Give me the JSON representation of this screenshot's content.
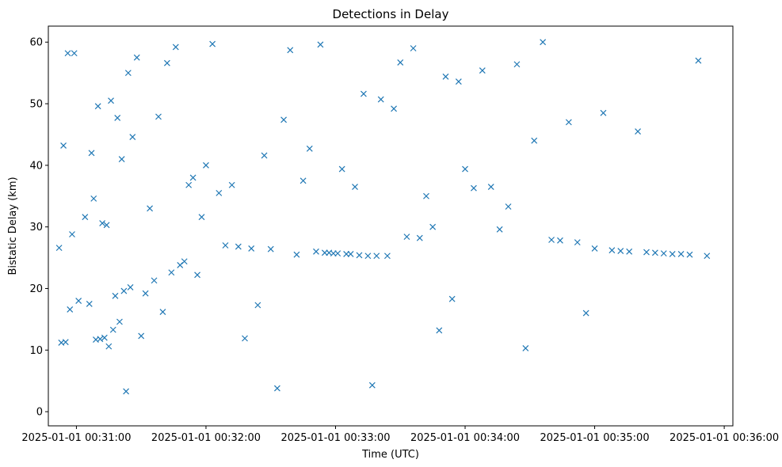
{
  "chart_data": {
    "type": "scatter",
    "title": "Detections in Delay",
    "xlabel": "Time (UTC)",
    "ylabel": "Bistatic Delay (km)",
    "marker": "x",
    "color": "#1f77b4",
    "grid": false,
    "xlim": [
      "2025-01-01 00:30:47",
      "2025-01-01 00:36:04"
    ],
    "ylim": [
      -2.3,
      62.6
    ],
    "x_ticks": [
      "2025-01-01 00:31:00",
      "2025-01-01 00:32:00",
      "2025-01-01 00:33:00",
      "2025-01-01 00:34:00",
      "2025-01-01 00:35:00",
      "2025-01-01 00:36:00"
    ],
    "y_ticks": [
      0,
      10,
      20,
      30,
      40,
      50,
      60
    ],
    "series": [
      {
        "x": [
          "00:30:52",
          "00:30:53",
          "00:30:54",
          "00:30:55",
          "00:30:56",
          "00:30:57",
          "00:30:58",
          "00:30:59",
          "00:31:01",
          "00:31:04",
          "00:31:06",
          "00:31:07",
          "00:31:08",
          "00:31:09",
          "00:31:10",
          "00:31:11",
          "00:31:12",
          "00:31:13",
          "00:31:14",
          "00:31:15",
          "00:31:16",
          "00:31:17",
          "00:31:18",
          "00:31:19",
          "00:31:20",
          "00:31:21",
          "00:31:22",
          "00:31:23",
          "00:31:24",
          "00:31:25",
          "00:31:26",
          "00:31:28",
          "00:31:30",
          "00:31:32",
          "00:31:34",
          "00:31:36",
          "00:31:38",
          "00:31:40",
          "00:31:42",
          "00:31:44",
          "00:31:46",
          "00:31:48",
          "00:31:50",
          "00:31:52",
          "00:31:54",
          "00:31:56",
          "00:31:58",
          "00:32:00",
          "00:32:03",
          "00:32:06",
          "00:32:09",
          "00:32:12",
          "00:32:15",
          "00:32:18",
          "00:32:21",
          "00:32:24",
          "00:32:27",
          "00:32:30",
          "00:32:33",
          "00:32:36",
          "00:32:39",
          "00:32:42",
          "00:32:45",
          "00:32:48",
          "00:32:51",
          "00:32:53",
          "00:32:55",
          "00:32:57",
          "00:32:59",
          "00:33:01",
          "00:33:03",
          "00:33:05",
          "00:33:07",
          "00:33:09",
          "00:33:11",
          "00:33:13",
          "00:33:15",
          "00:33:17",
          "00:33:19",
          "00:33:21",
          "00:33:24",
          "00:33:27",
          "00:33:30",
          "00:33:33",
          "00:33:36",
          "00:33:39",
          "00:33:42",
          "00:33:45",
          "00:33:48",
          "00:33:51",
          "00:33:54",
          "00:33:57",
          "00:34:00",
          "00:34:04",
          "00:34:08",
          "00:34:12",
          "00:34:16",
          "00:34:20",
          "00:34:24",
          "00:34:28",
          "00:34:32",
          "00:34:36",
          "00:34:40",
          "00:34:44",
          "00:34:48",
          "00:34:52",
          "00:34:56",
          "00:35:00",
          "00:35:04",
          "00:35:08",
          "00:35:12",
          "00:35:16",
          "00:35:20",
          "00:35:24",
          "00:35:28",
          "00:35:32",
          "00:35:36",
          "00:35:40",
          "00:35:44",
          "00:35:48",
          "00:35:52"
        ],
        "y": [
          26.6,
          11.2,
          43.2,
          11.3,
          58.2,
          16.6,
          28.8,
          58.2,
          18.0,
          31.6,
          17.5,
          42.0,
          34.6,
          11.7,
          49.6,
          11.8,
          30.6,
          12.0,
          30.3,
          10.6,
          50.5,
          13.3,
          18.8,
          47.7,
          14.6,
          41.0,
          19.6,
          3.3,
          55.0,
          20.2,
          44.6,
          57.5,
          12.3,
          19.2,
          33.0,
          21.3,
          47.9,
          16.2,
          56.6,
          22.6,
          59.2,
          23.8,
          24.4,
          36.8,
          38.0,
          22.2,
          31.6,
          40.0,
          59.7,
          35.5,
          27.0,
          36.8,
          26.8,
          11.9,
          26.5,
          17.3,
          41.6,
          26.4,
          3.8,
          47.4,
          58.7,
          25.5,
          37.5,
          42.7,
          26.0,
          59.6,
          25.8,
          25.8,
          25.7,
          25.7,
          39.4,
          25.6,
          25.6,
          36.5,
          25.4,
          51.6,
          25.3,
          4.3,
          25.3,
          50.7,
          25.3,
          49.2,
          56.7,
          28.4,
          59.0,
          28.2,
          35.0,
          30.0,
          13.2,
          54.4,
          18.3,
          53.6,
          39.4,
          36.3,
          55.4,
          36.5,
          29.6,
          33.3,
          56.4,
          10.3,
          44.0,
          60.0,
          27.9,
          27.8,
          47.0,
          27.5,
          16.0,
          26.5,
          48.5,
          26.2,
          26.1,
          26.0,
          45.5,
          25.9,
          25.8,
          25.7,
          25.6,
          25.6,
          25.5,
          57.0,
          25.3
        ]
      }
    ]
  }
}
